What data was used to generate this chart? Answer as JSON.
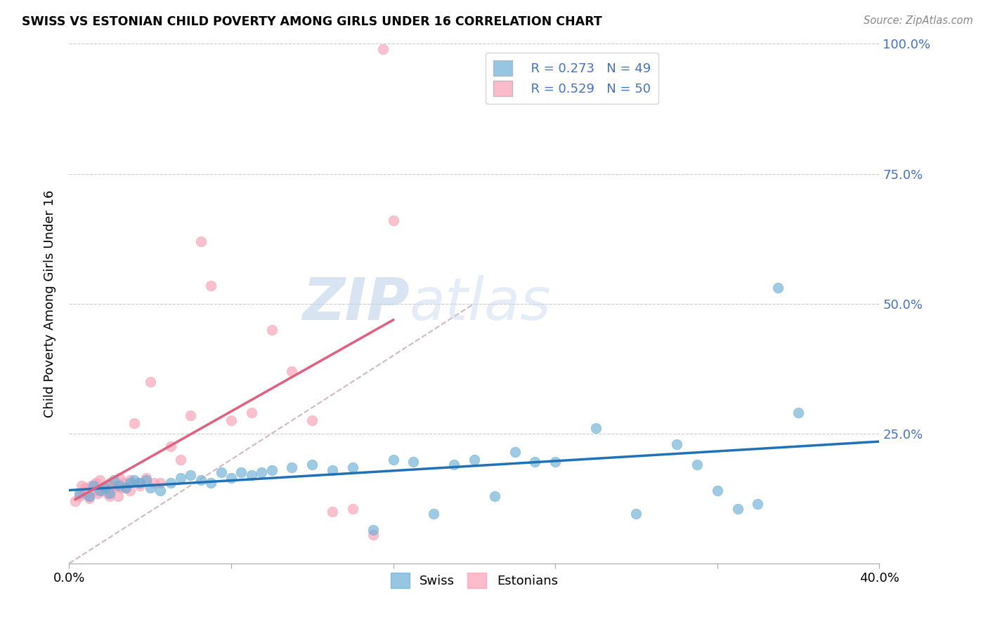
{
  "title": "SWISS VS ESTONIAN CHILD POVERTY AMONG GIRLS UNDER 16 CORRELATION CHART",
  "source": "Source: ZipAtlas.com",
  "ylabel": "Child Poverty Among Girls Under 16",
  "xlim": [
    0.0,
    0.4
  ],
  "ylim": [
    0.0,
    1.0
  ],
  "xticks": [
    0.0,
    0.08,
    0.16,
    0.24,
    0.32,
    0.4
  ],
  "yticks": [
    0.0,
    0.25,
    0.5,
    0.75,
    1.0
  ],
  "legend_swiss_R": "R = 0.273",
  "legend_swiss_N": "N = 49",
  "legend_estonian_R": "R = 0.529",
  "legend_estonian_N": "N = 50",
  "swiss_color": "#6baed6",
  "estonian_color": "#fa9fb5",
  "swiss_line_color": "#2171b5",
  "estonian_line_color": "#e0607e",
  "diag_line_color": "#d4b8c0",
  "watermark_zip": "ZIP",
  "watermark_atlas": "atlas",
  "swiss_x": [
    0.005,
    0.01,
    0.012,
    0.015,
    0.018,
    0.02,
    0.022,
    0.025,
    0.028,
    0.03,
    0.032,
    0.035,
    0.038,
    0.04,
    0.045,
    0.05,
    0.055,
    0.06,
    0.065,
    0.07,
    0.075,
    0.08,
    0.085,
    0.09,
    0.095,
    0.1,
    0.11,
    0.12,
    0.13,
    0.14,
    0.15,
    0.16,
    0.17,
    0.18,
    0.19,
    0.2,
    0.21,
    0.22,
    0.23,
    0.24,
    0.26,
    0.28,
    0.3,
    0.31,
    0.32,
    0.33,
    0.34,
    0.35,
    0.36
  ],
  "swiss_y": [
    0.135,
    0.13,
    0.15,
    0.14,
    0.145,
    0.135,
    0.16,
    0.15,
    0.145,
    0.155,
    0.16,
    0.155,
    0.16,
    0.145,
    0.14,
    0.155,
    0.165,
    0.17,
    0.16,
    0.155,
    0.175,
    0.165,
    0.175,
    0.17,
    0.175,
    0.18,
    0.185,
    0.19,
    0.18,
    0.185,
    0.065,
    0.2,
    0.195,
    0.095,
    0.19,
    0.2,
    0.13,
    0.215,
    0.195,
    0.195,
    0.26,
    0.095,
    0.23,
    0.19,
    0.14,
    0.105,
    0.115,
    0.53,
    0.29
  ],
  "estonian_x": [
    0.003,
    0.005,
    0.006,
    0.007,
    0.008,
    0.01,
    0.01,
    0.011,
    0.012,
    0.013,
    0.014,
    0.015,
    0.016,
    0.017,
    0.018,
    0.019,
    0.02,
    0.02,
    0.021,
    0.022,
    0.023,
    0.024,
    0.025,
    0.026,
    0.027,
    0.028,
    0.03,
    0.03,
    0.032,
    0.034,
    0.035,
    0.038,
    0.04,
    0.042,
    0.045,
    0.05,
    0.055,
    0.06,
    0.065,
    0.07,
    0.08,
    0.09,
    0.1,
    0.11,
    0.12,
    0.13,
    0.14,
    0.15,
    0.155,
    0.16
  ],
  "estonian_y": [
    0.12,
    0.13,
    0.15,
    0.135,
    0.145,
    0.13,
    0.125,
    0.15,
    0.14,
    0.155,
    0.135,
    0.16,
    0.14,
    0.145,
    0.15,
    0.135,
    0.155,
    0.13,
    0.148,
    0.145,
    0.15,
    0.13,
    0.165,
    0.145,
    0.155,
    0.145,
    0.16,
    0.14,
    0.27,
    0.155,
    0.15,
    0.165,
    0.35,
    0.155,
    0.155,
    0.225,
    0.2,
    0.285,
    0.62,
    0.535,
    0.275,
    0.29,
    0.45,
    0.37,
    0.275,
    0.1,
    0.105,
    0.055,
    0.99,
    0.66
  ]
}
